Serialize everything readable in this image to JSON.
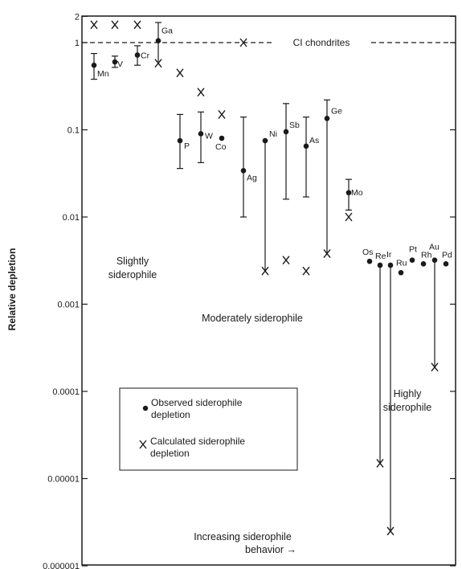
{
  "chart_data": {
    "type": "scatter",
    "ylabel": "Relative depletion",
    "yscale": "log",
    "ylim": [
      1e-06,
      2
    ],
    "y_ticks": [
      {
        "value": 2,
        "label": "2"
      },
      {
        "value": 1,
        "label": "1"
      },
      {
        "value": 0.1,
        "label": "0.1"
      },
      {
        "value": 0.01,
        "label": "0.01"
      },
      {
        "value": 0.001,
        "label": "0.001"
      },
      {
        "value": 0.0001,
        "label": "0.0001"
      },
      {
        "value": 1e-05,
        "label": "0.00001"
      },
      {
        "value": 1e-06,
        "label": "0.000001"
      }
    ],
    "reference_line": {
      "value": 1,
      "label": "CI chondrites"
    },
    "elements": [
      {
        "name": "Mn",
        "observed": 0.55,
        "err_low": 0.38,
        "err_high": 0.75,
        "calculated": 1.6
      },
      {
        "name": "V",
        "observed": 0.6,
        "err_low": 0.52,
        "err_high": 0.7,
        "calculated": 1.6
      },
      {
        "name": "Cr",
        "observed": 0.72,
        "err_low": 0.55,
        "err_high": 0.92,
        "calculated": 1.6
      },
      {
        "name": "Ga",
        "observed": 1.05,
        "err_low": 0.6,
        "err_high": 1.7,
        "calculated": 0.58
      },
      {
        "name": "P",
        "observed": 0.075,
        "err_low": 0.036,
        "err_high": 0.15,
        "calculated": 0.45
      },
      {
        "name": "W",
        "observed": 0.09,
        "err_low": 0.042,
        "err_high": 0.16,
        "calculated": 0.27
      },
      {
        "name": "Co",
        "observed": 0.08,
        "err_low": null,
        "err_high": null,
        "calculated": 0.15
      },
      {
        "name": "Ag",
        "observed": 0.034,
        "err_low": 0.01,
        "err_high": 0.14,
        "calculated": 1.0
      },
      {
        "name": "Ni",
        "observed": 0.075,
        "err_low": 0.0024,
        "err_high": null,
        "calculated": 0.0024
      },
      {
        "name": "Sb",
        "observed": 0.095,
        "err_low": 0.016,
        "err_high": 0.2,
        "calculated": 0.0032
      },
      {
        "name": "As",
        "observed": 0.065,
        "err_low": 0.017,
        "err_high": 0.14,
        "calculated": 0.0024
      },
      {
        "name": "Ge",
        "observed": 0.135,
        "err_low": 0.0038,
        "err_high": 0.22,
        "calculated": 0.0038
      },
      {
        "name": "Mo",
        "observed": 0.019,
        "err_low": 0.012,
        "err_high": 0.027,
        "calculated": 0.01
      },
      {
        "name": "Os",
        "observed": 0.0031,
        "err_low": null,
        "err_high": null,
        "calculated": null
      },
      {
        "name": "Re",
        "observed": 0.0028,
        "err_low": 1.5e-05,
        "err_high": null,
        "calculated": 1.5e-05
      },
      {
        "name": "Ir",
        "observed": 0.0028,
        "err_low": 2.5e-06,
        "err_high": null,
        "calculated": 2.5e-06
      },
      {
        "name": "Ru",
        "observed": 0.0023,
        "err_low": null,
        "err_high": null,
        "calculated": null
      },
      {
        "name": "Pt",
        "observed": 0.0032,
        "err_low": null,
        "err_high": null,
        "calculated": null
      },
      {
        "name": "Rh",
        "observed": 0.0029,
        "err_low": null,
        "err_high": null,
        "calculated": null
      },
      {
        "name": "Au",
        "observed": 0.0032,
        "err_low": 0.00019,
        "err_high": null,
        "calculated": 0.00019
      },
      {
        "name": "Pd",
        "observed": 0.0029,
        "err_low": null,
        "err_high": null,
        "calculated": null
      }
    ],
    "group_labels": [
      {
        "lines": [
          "Slightly",
          "siderophile"
        ]
      },
      {
        "lines": [
          "Moderately siderophile"
        ]
      },
      {
        "lines": [
          "Highly",
          "siderophile"
        ]
      }
    ],
    "legend": {
      "placement": "lower-left",
      "entries": [
        {
          "marker": "dot",
          "lines": [
            "Observed siderophile",
            "depletion"
          ]
        },
        {
          "marker": "x",
          "lines": [
            "Calculated siderophile",
            "depletion"
          ]
        }
      ]
    },
    "annotation": {
      "lines": [
        "Increasing siderophile",
        "behavior →"
      ]
    },
    "grid": false
  }
}
